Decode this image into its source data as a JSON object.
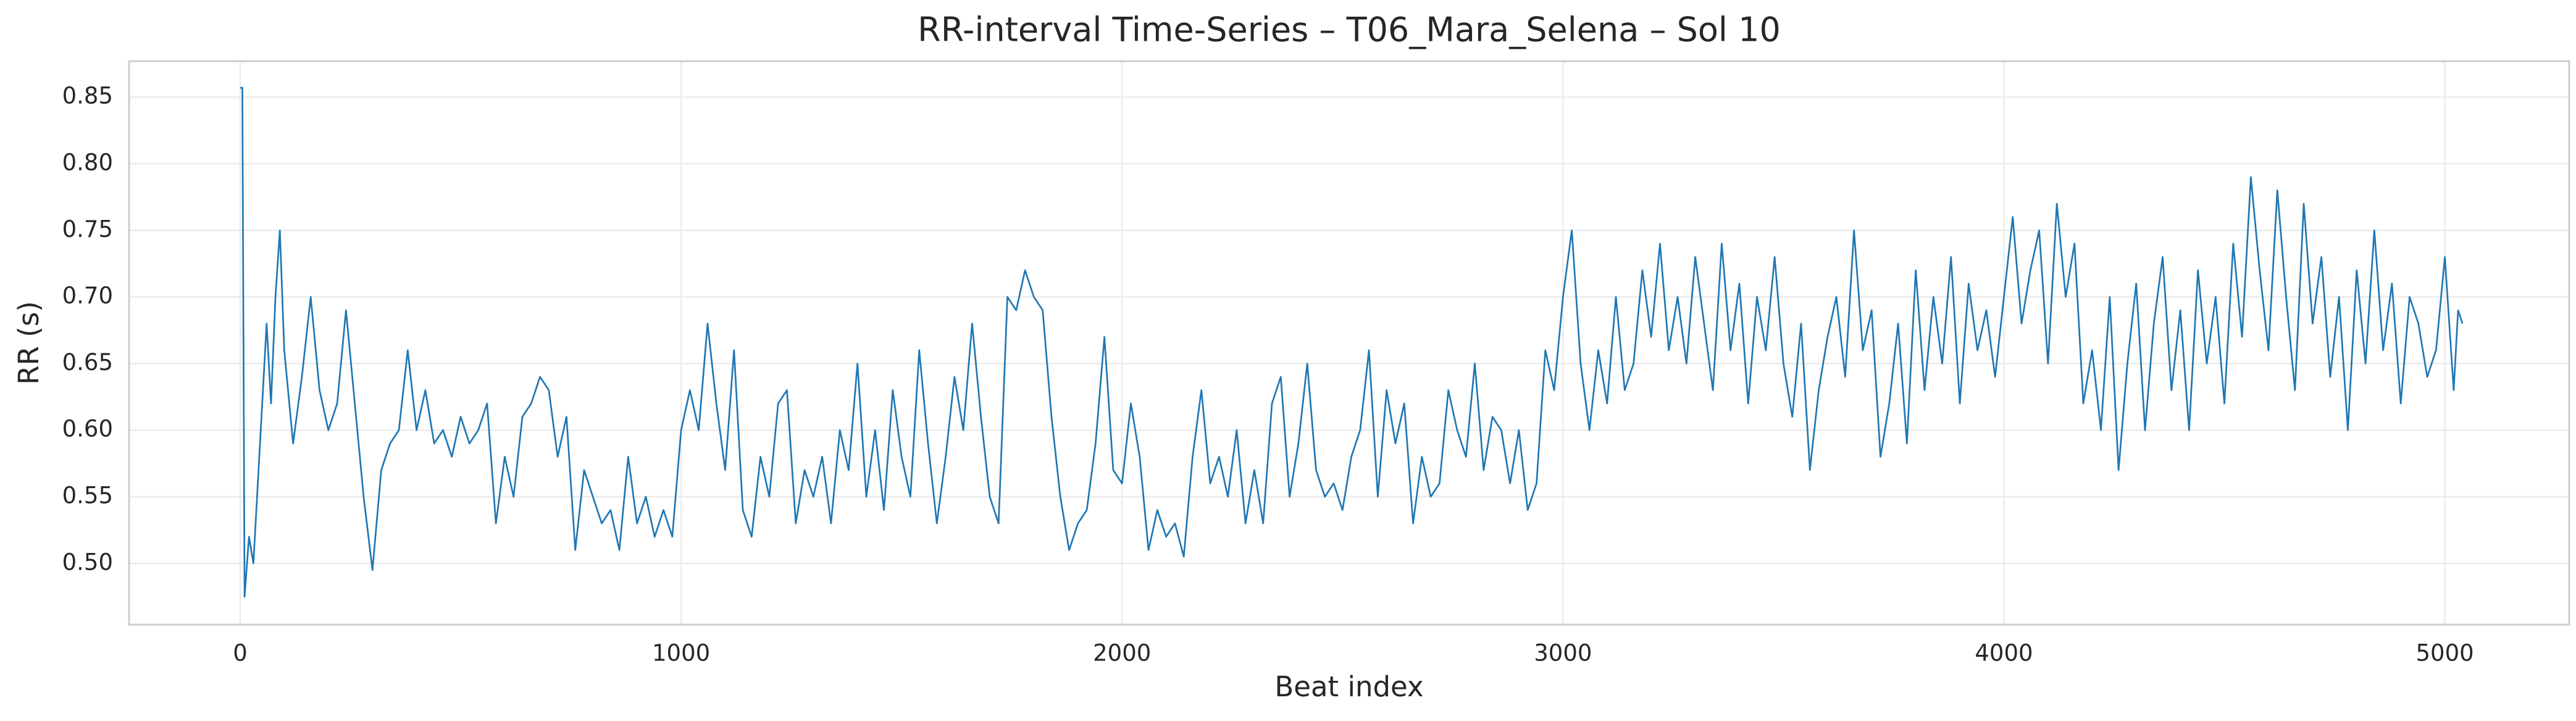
{
  "chart_data": {
    "type": "line",
    "title": "RR-interval Time-Series – T06_Mara_Selena – Sol 10",
    "xlabel": "Beat index",
    "ylabel": "RR (s)",
    "color": "#1f77b4",
    "grid": true,
    "xlim": [
      -252,
      5282
    ],
    "ylim": [
      0.454,
      0.877
    ],
    "xticks": [
      0,
      1000,
      2000,
      3000,
      4000,
      5000
    ],
    "yticks": [
      {
        "value": 0.5,
        "label": "0.50"
      },
      0.55,
      {
        "value": 0.6,
        "label": "0.60"
      },
      0.65,
      {
        "value": 0.7,
        "label": "0.70"
      },
      0.75,
      {
        "value": 0.8,
        "label": "0.80"
      },
      0.85
    ],
    "x": [
      0,
      5,
      10,
      20,
      30,
      40,
      50,
      60,
      70,
      80,
      90,
      100,
      120,
      140,
      160,
      180,
      200,
      220,
      240,
      260,
      280,
      300,
      320,
      340,
      360,
      380,
      400,
      420,
      440,
      460,
      480,
      500,
      520,
      540,
      560,
      580,
      600,
      620,
      640,
      660,
      680,
      700,
      720,
      740,
      760,
      780,
      800,
      820,
      840,
      860,
      880,
      900,
      920,
      940,
      960,
      980,
      1000,
      1020,
      1040,
      1060,
      1080,
      1100,
      1120,
      1140,
      1160,
      1180,
      1200,
      1220,
      1240,
      1260,
      1280,
      1300,
      1320,
      1340,
      1360,
      1380,
      1400,
      1420,
      1440,
      1460,
      1480,
      1500,
      1520,
      1540,
      1560,
      1580,
      1600,
      1620,
      1640,
      1660,
      1680,
      1700,
      1720,
      1740,
      1760,
      1780,
      1800,
      1820,
      1840,
      1860,
      1880,
      1900,
      1920,
      1940,
      1960,
      1980,
      2000,
      2020,
      2040,
      2060,
      2080,
      2100,
      2120,
      2140,
      2160,
      2180,
      2200,
      2220,
      2240,
      2260,
      2280,
      2300,
      2320,
      2340,
      2360,
      2380,
      2400,
      2420,
      2440,
      2460,
      2480,
      2500,
      2520,
      2540,
      2560,
      2580,
      2600,
      2620,
      2640,
      2660,
      2680,
      2700,
      2720,
      2740,
      2760,
      2780,
      2800,
      2820,
      2840,
      2860,
      2880,
      2900,
      2920,
      2940,
      2960,
      2980,
      3000,
      3020,
      3040,
      3060,
      3080,
      3100,
      3120,
      3140,
      3160,
      3180,
      3200,
      3220,
      3240,
      3260,
      3280,
      3300,
      3320,
      3340,
      3360,
      3380,
      3400,
      3420,
      3440,
      3460,
      3480,
      3500,
      3520,
      3540,
      3560,
      3580,
      3600,
      3620,
      3640,
      3660,
      3680,
      3700,
      3720,
      3740,
      3760,
      3780,
      3800,
      3820,
      3840,
      3860,
      3880,
      3900,
      3920,
      3940,
      3960,
      3980,
      4000,
      4020,
      4040,
      4060,
      4080,
      4100,
      4120,
      4140,
      4160,
      4180,
      4200,
      4220,
      4240,
      4260,
      4280,
      4300,
      4320,
      4340,
      4360,
      4380,
      4400,
      4420,
      4440,
      4460,
      4480,
      4500,
      4520,
      4540,
      4560,
      4580,
      4600,
      4620,
      4640,
      4660,
      4680,
      4700,
      4720,
      4740,
      4760,
      4780,
      4800,
      4820,
      4840,
      4860,
      4880,
      4900,
      4920,
      4940,
      4960,
      4980,
      5000,
      5020,
      5030,
      5040
    ],
    "values": [
      0.857,
      0.857,
      0.475,
      0.52,
      0.5,
      0.56,
      0.62,
      0.68,
      0.62,
      0.7,
      0.75,
      0.66,
      0.59,
      0.64,
      0.7,
      0.63,
      0.6,
      0.62,
      0.69,
      0.62,
      0.55,
      0.495,
      0.57,
      0.59,
      0.6,
      0.66,
      0.6,
      0.63,
      0.59,
      0.6,
      0.58,
      0.61,
      0.59,
      0.6,
      0.62,
      0.53,
      0.58,
      0.55,
      0.61,
      0.62,
      0.64,
      0.63,
      0.58,
      0.61,
      0.51,
      0.57,
      0.55,
      0.53,
      0.54,
      0.51,
      0.58,
      0.53,
      0.55,
      0.52,
      0.54,
      0.52,
      0.6,
      0.63,
      0.6,
      0.68,
      0.62,
      0.57,
      0.66,
      0.54,
      0.52,
      0.58,
      0.55,
      0.62,
      0.63,
      0.53,
      0.57,
      0.55,
      0.58,
      0.53,
      0.6,
      0.57,
      0.65,
      0.55,
      0.6,
      0.54,
      0.63,
      0.58,
      0.55,
      0.66,
      0.59,
      0.53,
      0.58,
      0.64,
      0.6,
      0.68,
      0.61,
      0.55,
      0.53,
      0.7,
      0.69,
      0.72,
      0.7,
      0.69,
      0.61,
      0.55,
      0.51,
      0.53,
      0.54,
      0.59,
      0.67,
      0.57,
      0.56,
      0.62,
      0.58,
      0.51,
      0.54,
      0.52,
      0.53,
      0.505,
      0.58,
      0.63,
      0.56,
      0.58,
      0.55,
      0.6,
      0.53,
      0.57,
      0.53,
      0.62,
      0.64,
      0.55,
      0.59,
      0.65,
      0.57,
      0.55,
      0.56,
      0.54,
      0.58,
      0.6,
      0.66,
      0.55,
      0.63,
      0.59,
      0.62,
      0.53,
      0.58,
      0.55,
      0.56,
      0.63,
      0.6,
      0.58,
      0.65,
      0.57,
      0.61,
      0.6,
      0.56,
      0.6,
      0.54,
      0.56,
      0.66,
      0.63,
      0.7,
      0.75,
      0.65,
      0.6,
      0.66,
      0.62,
      0.7,
      0.63,
      0.65,
      0.72,
      0.67,
      0.74,
      0.66,
      0.7,
      0.65,
      0.73,
      0.68,
      0.63,
      0.74,
      0.66,
      0.71,
      0.62,
      0.7,
      0.66,
      0.73,
      0.65,
      0.61,
      0.68,
      0.57,
      0.63,
      0.67,
      0.7,
      0.64,
      0.75,
      0.66,
      0.69,
      0.58,
      0.62,
      0.68,
      0.59,
      0.72,
      0.63,
      0.7,
      0.65,
      0.73,
      0.62,
      0.71,
      0.66,
      0.69,
      0.64,
      0.7,
      0.76,
      0.68,
      0.72,
      0.75,
      0.65,
      0.77,
      0.7,
      0.74,
      0.62,
      0.66,
      0.6,
      0.7,
      0.57,
      0.65,
      0.71,
      0.6,
      0.68,
      0.73,
      0.63,
      0.69,
      0.6,
      0.72,
      0.65,
      0.7,
      0.62,
      0.74,
      0.67,
      0.79,
      0.72,
      0.66,
      0.78,
      0.7,
      0.63,
      0.77,
      0.68,
      0.73,
      0.64,
      0.7,
      0.6,
      0.72,
      0.65,
      0.75,
      0.66,
      0.71,
      0.62,
      0.7,
      0.68,
      0.64,
      0.66,
      0.73,
      0.63,
      0.69,
      0.68
    ]
  }
}
